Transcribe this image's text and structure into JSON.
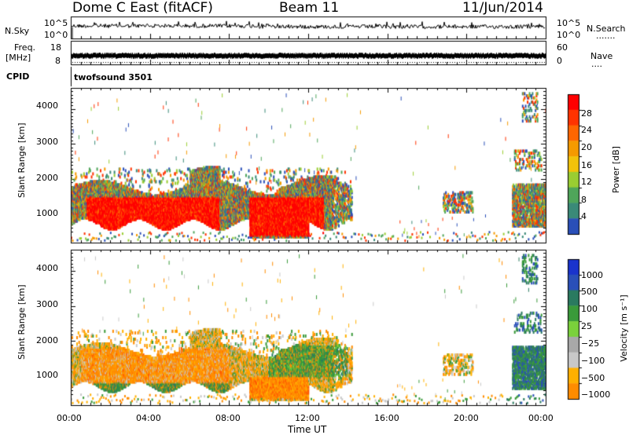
{
  "header": {
    "station": "Dome C East (fitACF)",
    "beam": "Beam 11",
    "date": "11/Jun/2014"
  },
  "side_labels": {
    "nsky": "N.Sky",
    "nsearch": "N.Search",
    "freq": "Freq.",
    "freq_unit": "[MHz]",
    "nave": "Nave",
    "cpid": "CPID",
    "dots_nsearch": ".......",
    "dots_nave": "...."
  },
  "cpid_value": "twofsound 3501",
  "colors": {
    "line": "#000000",
    "power_scale": [
      "#0033ff",
      "#2a4fb8",
      "#3a8a78",
      "#4fa55a",
      "#9acd32",
      "#f2c30a",
      "#f59a00",
      "#ff6600",
      "#ff3300",
      "#ff0000"
    ],
    "velocity_scale": [
      "#ff0000",
      "#ff5a00",
      "#ff8c00",
      "#ffb000",
      "#c8c8c8",
      "#a8a8a8",
      "#7ad13b",
      "#3a9a3a",
      "#2a7a60",
      "#2a4fb8",
      "#1a33cc"
    ]
  },
  "chart_data": [
    {
      "type": "line",
      "name": "noise-panel",
      "ylabel_left": "N.Sky",
      "ylabel_right": "N.Search",
      "left_ticks": [
        "10^5",
        "10^0"
      ],
      "right_ticks": [
        "10^5",
        "10^0"
      ],
      "xlim": [
        0,
        24
      ],
      "log_ylim": [
        0,
        5
      ],
      "series_level_log": [
        3.6,
        3.9
      ]
    },
    {
      "type": "line",
      "name": "freq-nave-panel",
      "ylabel_left": "Freq. [MHz]",
      "ylabel_right": "Nave",
      "left_ticks": [
        "18",
        "8"
      ],
      "right_ticks": [
        "60",
        "0"
      ],
      "left_ylim": [
        8,
        18
      ],
      "right_ylim": [
        0,
        60
      ],
      "freq_level": [
        11.5,
        12.7
      ]
    },
    {
      "type": "heatmap",
      "name": "power-panel",
      "ylabel": "Slant Range [km]",
      "yticks": [
        "1000",
        "2000",
        "3000",
        "4000"
      ],
      "ytick_values": [
        1000,
        2000,
        3000,
        4000
      ],
      "ylim": [
        180,
        4600
      ],
      "xlim": [
        0,
        24
      ],
      "colorbar_label": "Power [dB]",
      "colorbar_ticks": [
        "4",
        "8",
        "12",
        "16",
        "20",
        "24",
        "28"
      ],
      "colorbar_range": [
        0,
        32
      ]
    },
    {
      "type": "heatmap",
      "name": "velocity-panel",
      "ylabel": "Slant Range [km]",
      "yticks": [
        "1000",
        "2000",
        "3000",
        "4000"
      ],
      "ytick_values": [
        1000,
        2000,
        3000,
        4000
      ],
      "ylim": [
        180,
        4600
      ],
      "xlim": [
        0,
        24
      ],
      "xlabel": "Time UT",
      "xticks": [
        "00:00",
        "04:00",
        "08:00",
        "12:00",
        "16:00",
        "20:00",
        "00:00"
      ],
      "xtick_values": [
        0,
        4,
        8,
        12,
        16,
        20,
        24
      ],
      "colorbar_label": "Velocity [m s⁻¹]",
      "colorbar_ticks": [
        "1000",
        "500",
        "100",
        "25",
        "−25",
        "−100",
        "−500",
        "−1000"
      ]
    }
  ]
}
